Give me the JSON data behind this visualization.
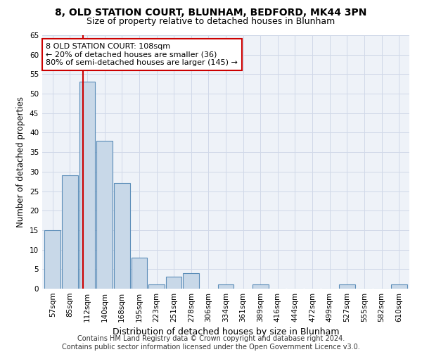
{
  "title1": "8, OLD STATION COURT, BLUNHAM, BEDFORD, MK44 3PN",
  "title2": "Size of property relative to detached houses in Blunham",
  "xlabel": "Distribution of detached houses by size in Blunham",
  "ylabel": "Number of detached properties",
  "footer1": "Contains HM Land Registry data © Crown copyright and database right 2024.",
  "footer2": "Contains public sector information licensed under the Open Government Licence v3.0.",
  "annotation_line1": "8 OLD STATION COURT: 108sqm",
  "annotation_line2": "← 20% of detached houses are smaller (36)",
  "annotation_line3": "80% of semi-detached houses are larger (145) →",
  "bar_labels": [
    "57sqm",
    "85sqm",
    "112sqm",
    "140sqm",
    "168sqm",
    "195sqm",
    "223sqm",
    "251sqm",
    "278sqm",
    "306sqm",
    "334sqm",
    "361sqm",
    "389sqm",
    "416sqm",
    "444sqm",
    "472sqm",
    "499sqm",
    "527sqm",
    "555sqm",
    "582sqm",
    "610sqm"
  ],
  "bar_values": [
    15,
    29,
    53,
    38,
    27,
    8,
    1,
    3,
    4,
    0,
    1,
    0,
    1,
    0,
    0,
    0,
    0,
    1,
    0,
    0,
    1
  ],
  "bar_color": "#c8d8e8",
  "bar_edge_color": "#5b8db8",
  "bar_edge_width": 0.8,
  "red_line_x": 1.75,
  "ylim": [
    0,
    65
  ],
  "yticks": [
    0,
    5,
    10,
    15,
    20,
    25,
    30,
    35,
    40,
    45,
    50,
    55,
    60,
    65
  ],
  "grid_color": "#d0d8e8",
  "bg_color": "#eef2f8",
  "annotation_box_edge": "#cc0000",
  "red_line_color": "#cc0000",
  "title_fontsize": 10,
  "subtitle_fontsize": 9,
  "axis_label_fontsize": 8.5,
  "tick_fontsize": 7.5,
  "annotation_fontsize": 8,
  "footer_fontsize": 7
}
